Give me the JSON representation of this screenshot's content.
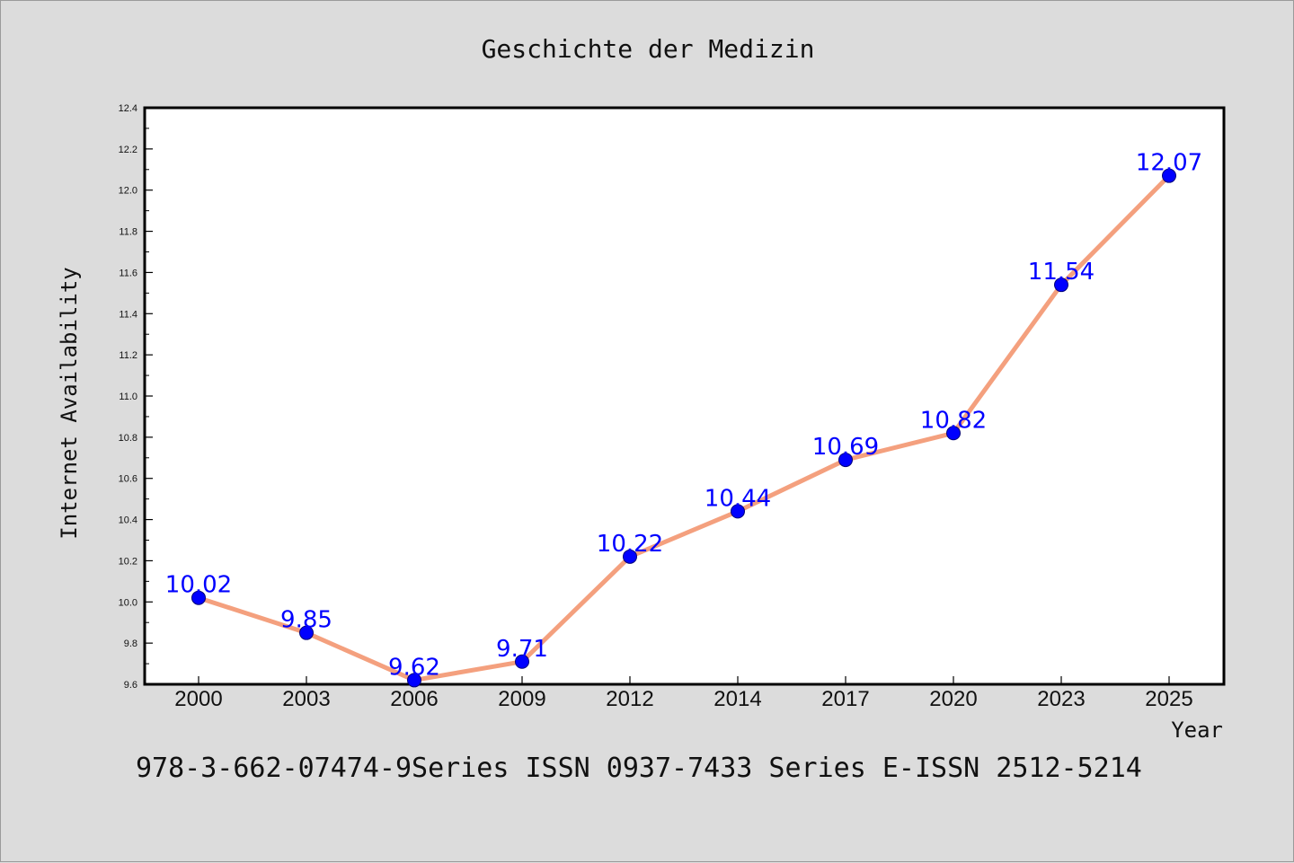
{
  "colors": {
    "background": "#dcdcdc",
    "plot_area": "#ffffff",
    "line": "#f4a07e",
    "marker": "#0000ff",
    "data_label": "#0000ff"
  },
  "chart_data": {
    "type": "line",
    "title": "Geschichte der Medizin",
    "xlabel": "Year",
    "ylabel": "Internet Availability",
    "categories": [
      "2000",
      "2003",
      "2006",
      "2009",
      "2012",
      "2014",
      "2017",
      "2020",
      "2023",
      "2025"
    ],
    "series": [
      {
        "values": [
          10.02,
          9.85,
          9.62,
          9.71,
          10.22,
          10.44,
          10.69,
          10.82,
          11.54,
          12.07
        ],
        "labels": [
          "10.02",
          "9.85",
          "9.62",
          "9.71",
          "10.22",
          "10.44",
          "10.69",
          "10.82",
          "11.54",
          "12.07"
        ]
      }
    ],
    "ylim": [
      9.6,
      12.4
    ],
    "yticks": [
      "9.6",
      "9.8",
      "10.0",
      "10.2",
      "10.4",
      "10.6",
      "10.8",
      "11.0",
      "11.2",
      "11.4",
      "11.6",
      "11.8",
      "12.0",
      "12.2",
      "12.4"
    ],
    "grid": false,
    "legend": "none"
  },
  "footer": "978-3-662-07474-9Series ISSN 0937-7433 Series E-ISSN 2512-5214"
}
